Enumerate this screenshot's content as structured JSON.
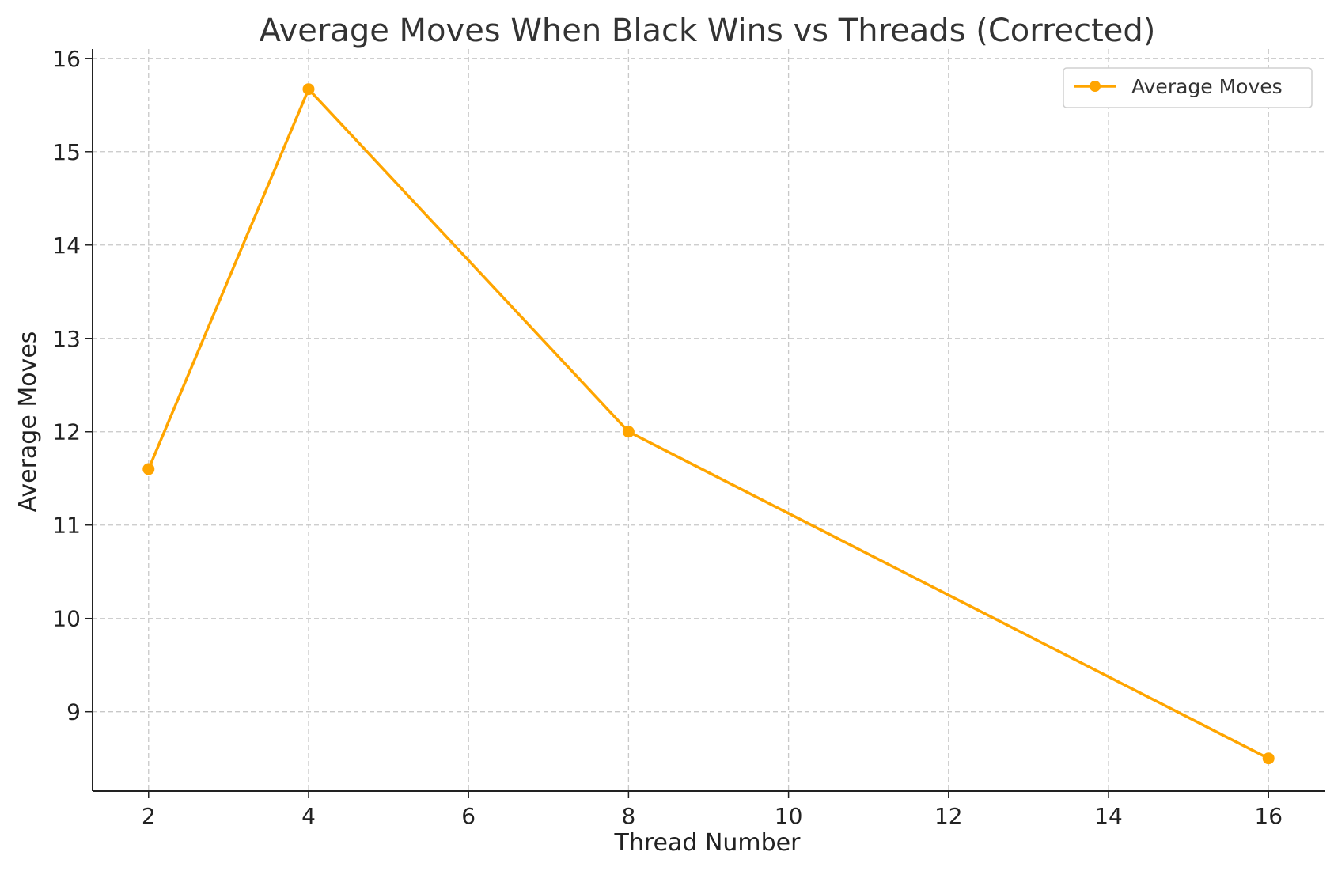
{
  "chart_data": {
    "type": "line",
    "title": "Average Moves When Black Wins vs Threads (Corrected)",
    "xlabel": "Thread Number",
    "ylabel": "Average Moves",
    "xlim": [
      1.3,
      16.7
    ],
    "ylim": [
      8.15,
      16.1
    ],
    "xticks": [
      "2",
      "4",
      "6",
      "8",
      "10",
      "12",
      "14",
      "16"
    ],
    "yticks": [
      "9",
      "10",
      "11",
      "12",
      "13",
      "14",
      "15",
      "16"
    ],
    "grid": true,
    "legend_position": "top-right",
    "series": [
      {
        "name": "Average Moves",
        "color": "#FFA500",
        "marker": "circle",
        "x": [
          2,
          4,
          8,
          16
        ],
        "y": [
          11.6,
          15.67,
          12.0,
          8.5
        ]
      }
    ]
  }
}
